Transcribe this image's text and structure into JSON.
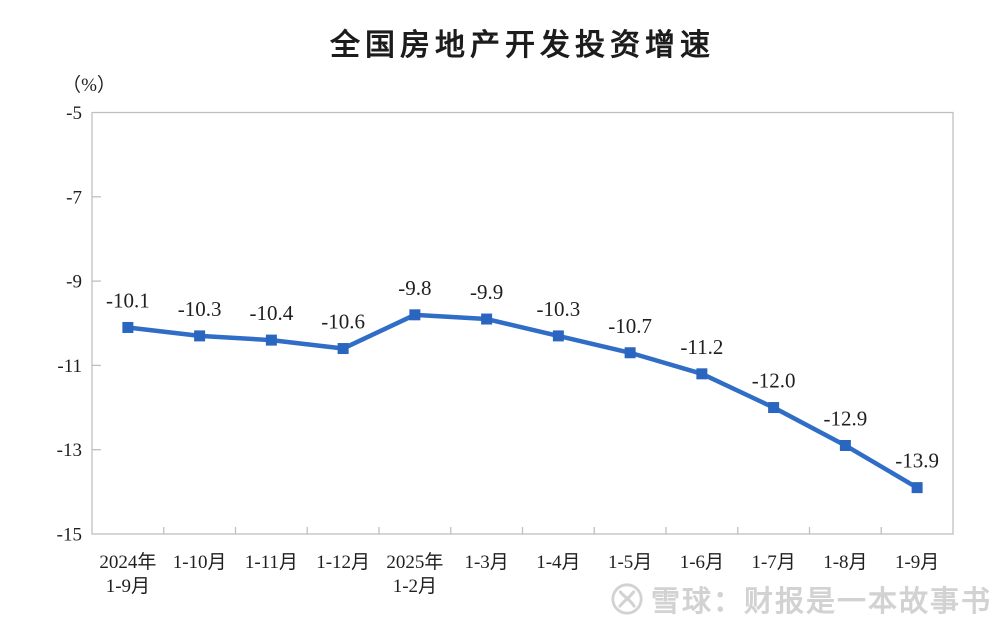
{
  "title": "全国房地产开发投资增速",
  "y_axis_unit": "（%）",
  "watermark": {
    "logo": "xueqiu-logo",
    "text": "雪球：财报是一本故事书"
  },
  "colors": {
    "line": "#2F6DC6",
    "marker": "#2A66C0",
    "axis": "#BFBFBF",
    "text": "#1F1F1F",
    "title": "#1C1C1C",
    "watermark": "#D2D2D2",
    "background": "#FFFFFF"
  },
  "chart_data": {
    "type": "line",
    "title": "全国房地产开发投资增速",
    "ylabel": "（%）",
    "categories": [
      "2024年\n1-9月",
      "1-10月",
      "1-11月",
      "1-12月",
      "2025年\n1-2月",
      "1-3月",
      "1-4月",
      "1-5月",
      "1-6月",
      "1-7月",
      "1-8月",
      "1-9月"
    ],
    "values": [
      -10.1,
      -10.3,
      -10.4,
      -10.6,
      -9.8,
      -9.9,
      -10.3,
      -10.7,
      -11.2,
      -12.0,
      -12.9,
      -13.9
    ],
    "labels": [
      "-10.1",
      "-10.3",
      "-10.4",
      "-10.6",
      "-9.8",
      "-9.9",
      "-10.3",
      "-10.7",
      "-11.2",
      "-12.0",
      "-12.9",
      "-13.9"
    ],
    "ylim": [
      -15,
      -5
    ],
    "yticks": [
      -5,
      -7,
      -9,
      -11,
      -13,
      -15
    ],
    "grid": false,
    "legend": "none",
    "marker": "square",
    "data_label_position": "above"
  }
}
